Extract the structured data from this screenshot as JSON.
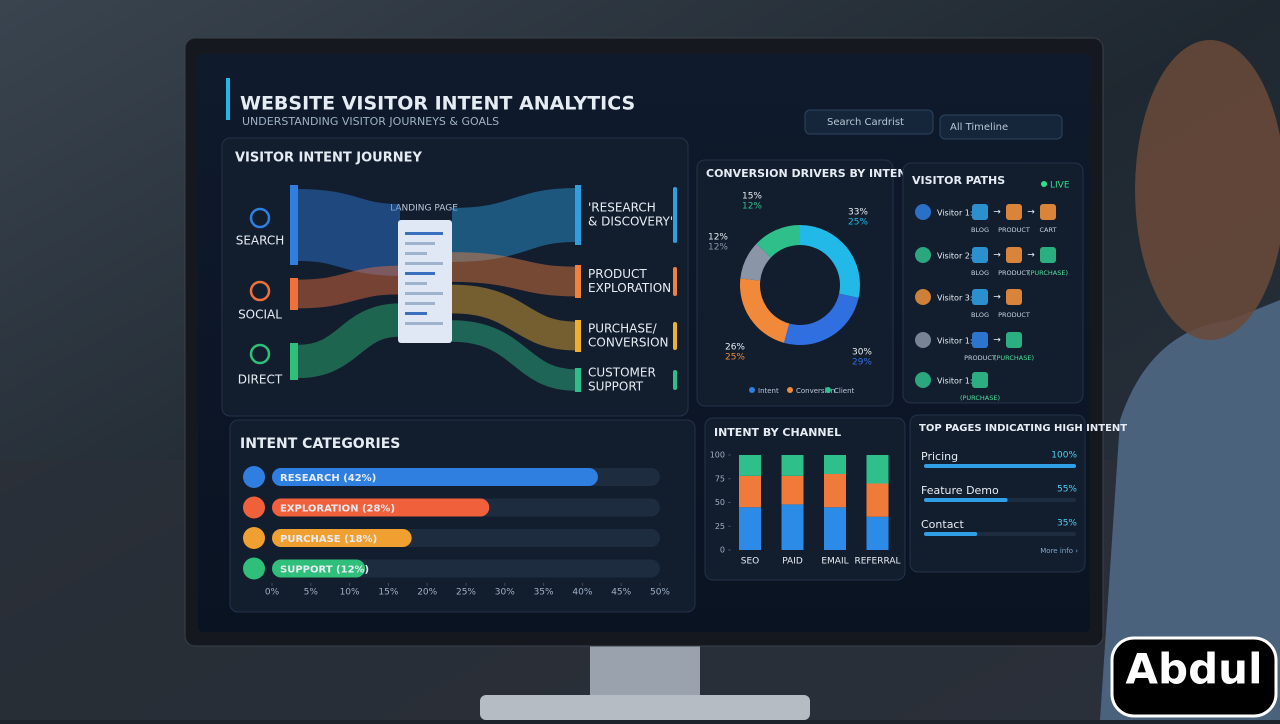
{
  "header": {
    "title": "WEBSITE VISITOR INTENT ANALYTICS",
    "subtitle": "UNDERSTANDING VISITOR JOURNEYS & GOALS",
    "filters": [
      "Search Cardrist",
      "All Timeline"
    ]
  },
  "journey": {
    "title": "VISITOR INTENT JOURNEY",
    "sources": [
      "SEARCH",
      "SOCIAL",
      "DIRECT"
    ],
    "center": "LANDING PAGE",
    "targets": [
      [
        "'RESEARCH",
        "& DISCOVERY'"
      ],
      [
        "PRODUCT",
        "EXPLORATION"
      ],
      [
        "PURCHASE/",
        "CONVERSION"
      ],
      [
        "CUSTOMER",
        "SUPPORT"
      ]
    ]
  },
  "visitor_paths": {
    "title": "VISITOR PATHS",
    "status": "LIVE",
    "rows": [
      {
        "visitor": "Visitor 1:",
        "steps": [
          "BLOG",
          "PRODUCT",
          "CART"
        ]
      },
      {
        "visitor": "Visitor 2:",
        "steps": [
          "BLOG",
          "PRODUCT",
          "(PURCHASE)"
        ]
      },
      {
        "visitor": "Visitor 3:",
        "steps": [
          "BLOG",
          "PRODUCT"
        ]
      },
      {
        "visitor": "Visitor 1:",
        "steps": [
          "PRODUCT",
          "(PURCHASE)"
        ]
      },
      {
        "visitor": "Visitor 1:",
        "steps": [
          "(PURCHASE)"
        ]
      }
    ]
  },
  "chart_data": [
    {
      "type": "donut",
      "title": "CONVERSION DRIVERS BY INTENT",
      "values": [
        33,
        30,
        26,
        12,
        15
      ],
      "value_labels": [
        "33%",
        "30%",
        "26%",
        "12%",
        "15%"
      ],
      "secondary_values": [
        25,
        29,
        25,
        12,
        12
      ],
      "secondary_value_labels": [
        "25%",
        "29%",
        "25%",
        "12%",
        "12%"
      ],
      "colors": [
        "#22b8e8",
        "#2f6fe0",
        "#f08a3a",
        "#8a96a8",
        "#2fbf8a"
      ],
      "legend": [
        {
          "name": "Intent",
          "color": "#2f7fe0"
        },
        {
          "name": "Conversion",
          "color": "#f08a3a"
        },
        {
          "name": "Client",
          "color": "#2fbf8a"
        }
      ]
    },
    {
      "type": "hbar",
      "title": "INTENT CATEGORIES",
      "categories": [
        "RESEARCH (42%)",
        "EXPLORATION (28%)",
        "PURCHASE (18%)",
        "SUPPORT (12%)"
      ],
      "values": [
        42,
        28,
        18,
        12
      ],
      "colors": [
        "#2f7fe0",
        "#f0603a",
        "#f0a030",
        "#2fbf7a"
      ],
      "xlim": [
        0,
        50
      ],
      "xticks": [
        {
          "value": 0,
          "label": "0%"
        },
        {
          "value": 5,
          "label": "5%"
        },
        {
          "value": 10,
          "label": "10%"
        },
        {
          "value": 15,
          "label": "15%"
        },
        {
          "value": 20,
          "label": "20%"
        },
        {
          "value": 25,
          "label": "25%"
        },
        {
          "value": 30,
          "label": "30%"
        },
        {
          "value": 35,
          "label": "35%"
        },
        {
          "value": 40,
          "label": "40%"
        },
        {
          "value": 45,
          "label": "45%"
        },
        {
          "value": 50,
          "label": "50%"
        }
      ]
    },
    {
      "type": "stacked_bar",
      "title": "INTENT BY CHANNEL",
      "categories": [
        "SEO",
        "PAID",
        "EMAIL",
        "REFERRAL"
      ],
      "series": [
        {
          "color": "#2c8be6",
          "values": [
            45,
            48,
            45,
            35
          ]
        },
        {
          "color": "#f07a3a",
          "values": [
            33,
            30,
            35,
            35
          ]
        },
        {
          "color": "#2fbf8a",
          "values": [
            22,
            22,
            20,
            30
          ]
        }
      ],
      "ylim": [
        0,
        100
      ],
      "yticks": [
        0,
        25,
        50,
        75,
        100
      ]
    },
    {
      "type": "progress",
      "title": "TOP PAGES INDICATING HIGH INTENT",
      "categories": [
        "Pricing",
        "Feature Demo",
        "Contact"
      ],
      "values": [
        100,
        55,
        35
      ],
      "value_labels": [
        "100%",
        "55%",
        "35%"
      ],
      "xlim": [
        0,
        100
      ],
      "color": "#2fa0e8",
      "link": "More info ›"
    }
  ],
  "watermark": "Abdul"
}
